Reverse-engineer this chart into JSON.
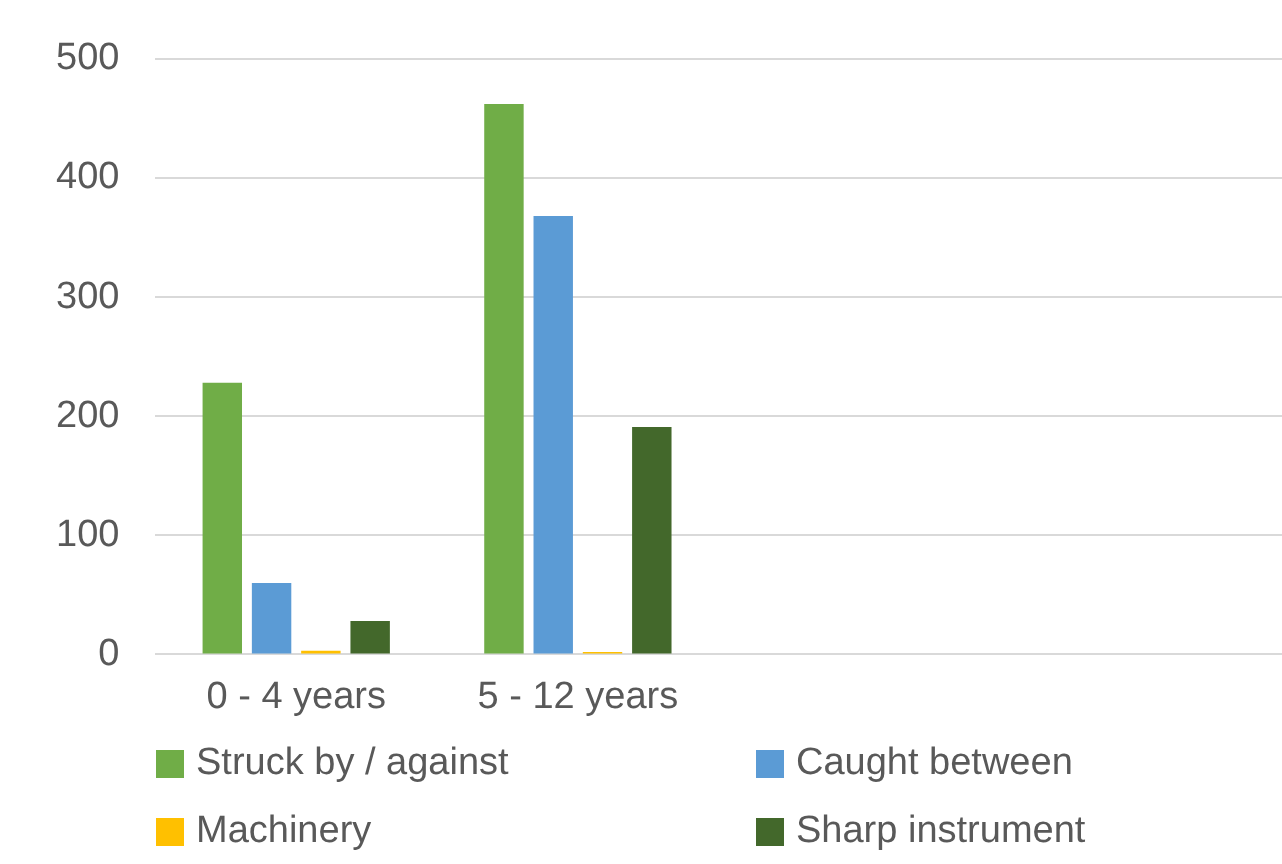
{
  "chart_data": {
    "type": "bar",
    "categories": [
      "0 - 4 years",
      "5 - 12 years",
      null,
      null
    ],
    "series": [
      {
        "name": "Struck by / against",
        "color": "#70ad47",
        "values": [
          228,
          462,
          null,
          null
        ]
      },
      {
        "name": "Caught between",
        "color": "#5b9bd5",
        "values": [
          60,
          368,
          null,
          null
        ]
      },
      {
        "name": "Machinery",
        "color": "#ffc000",
        "values": [
          3,
          2,
          null,
          null
        ]
      },
      {
        "name": "Sharp instrument",
        "color": "#43682b",
        "values": [
          28,
          191,
          null,
          null
        ]
      }
    ],
    "ylim": [
      0,
      500
    ],
    "yticks": [
      0,
      100,
      200,
      300,
      400,
      500
    ],
    "grid": "y",
    "legend": "bottom"
  }
}
